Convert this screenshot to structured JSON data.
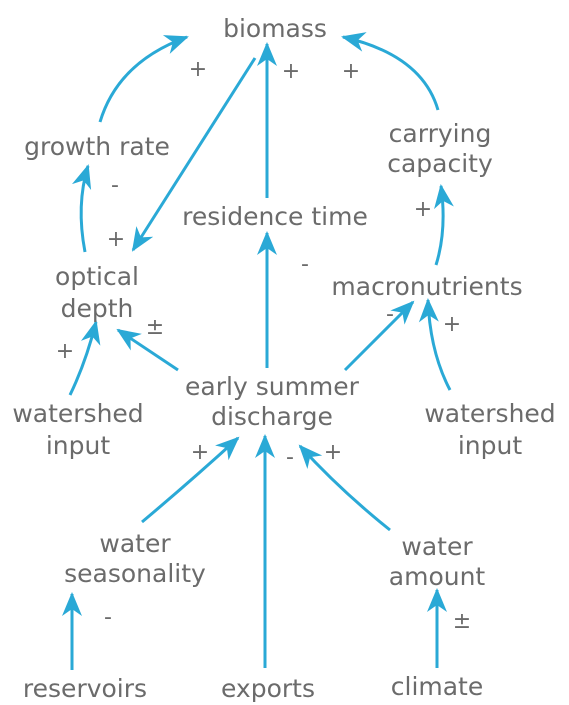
{
  "nodes": [
    {
      "lines": [
        "biomass"
      ]
    },
    {
      "lines": [
        "growth rate"
      ]
    },
    {
      "lines": [
        "carrying",
        "capacity"
      ]
    },
    {
      "lines": [
        "residence time"
      ]
    },
    {
      "lines": [
        "optical",
        "depth"
      ]
    },
    {
      "lines": [
        "macronutrients"
      ]
    },
    {
      "lines": [
        "early summer",
        "discharge"
      ]
    },
    {
      "lines": [
        "watershed",
        "input"
      ]
    },
    {
      "lines": [
        "watershed",
        "input"
      ]
    },
    {
      "lines": [
        "water",
        "seasonality"
      ]
    },
    {
      "lines": [
        "water",
        "amount"
      ]
    },
    {
      "lines": [
        "reservoirs"
      ]
    },
    {
      "lines": [
        "exports"
      ]
    },
    {
      "lines": [
        "climate"
      ]
    }
  ],
  "signs": [
    "+",
    "+",
    "+",
    "-",
    "+",
    "+",
    "-",
    "±",
    "+",
    "-",
    "+",
    "+",
    "-",
    "+",
    "-",
    "±"
  ]
}
